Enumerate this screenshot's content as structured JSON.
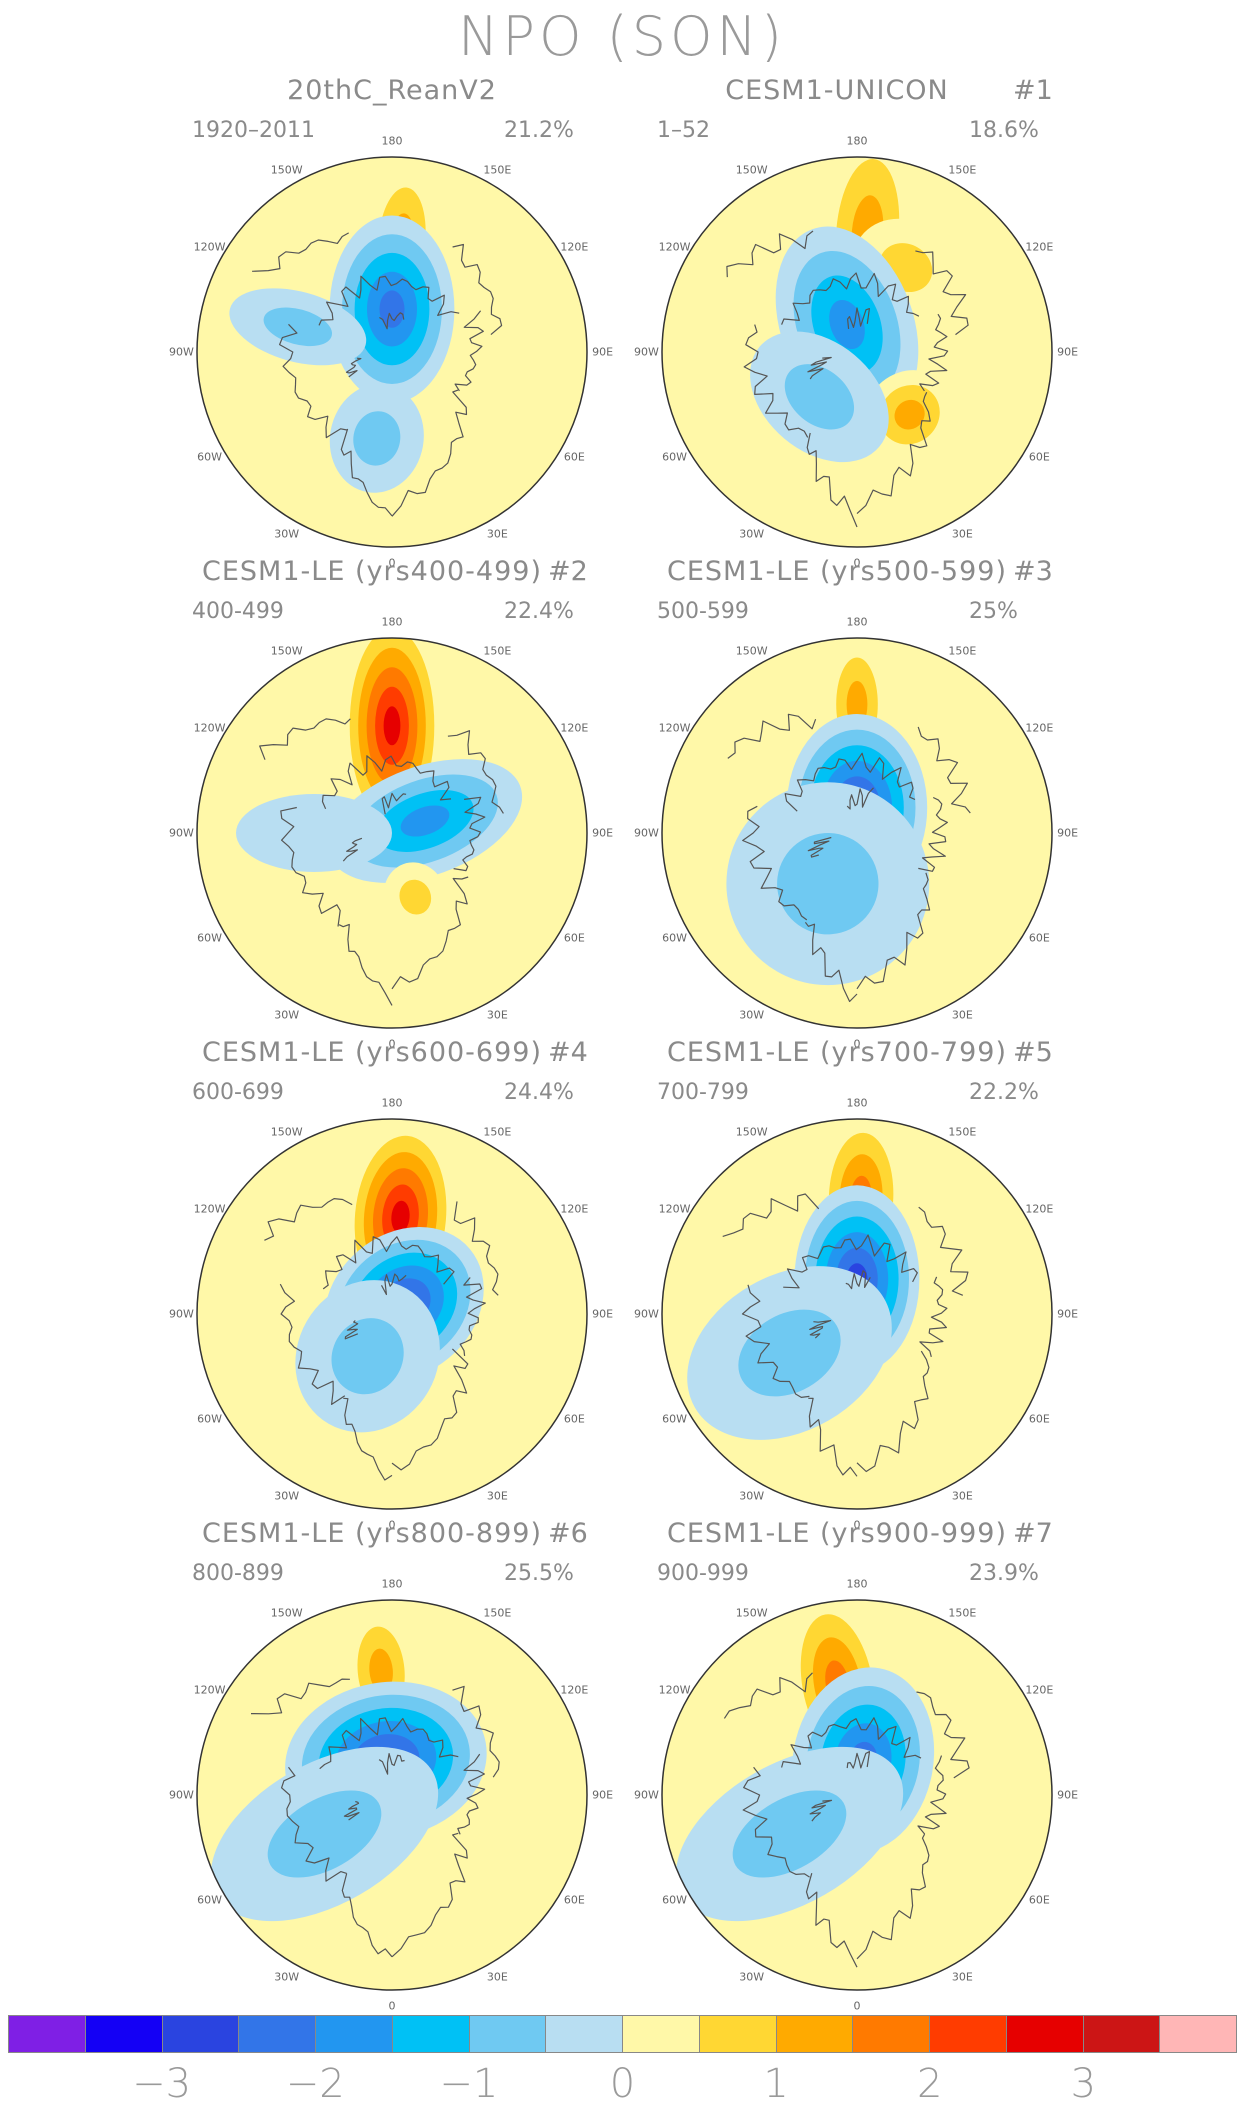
{
  "title": "NPO (SON)",
  "colors": {
    "levels": [
      "#7f1fe5",
      "#1400f5",
      "#2a44e0",
      "#3275e8",
      "#2296f0",
      "#00c1f5",
      "#6fc9f2",
      "#b8def2",
      "#fff8a8",
      "#ffd733",
      "#ffaa00",
      "#ff7a00",
      "#ff3c00",
      "#e60000",
      "#cc1515",
      "#ffb6b6"
    ],
    "coast": "#555555",
    "rim": "#333333"
  },
  "colorbar": {
    "ticks": [
      "−3",
      "−2",
      "−1",
      "0",
      "1",
      "2",
      "3"
    ]
  },
  "lon_labels": [
    "180",
    "150E",
    "120E",
    "90E",
    "60E",
    "30E",
    "0",
    "30W",
    "60W",
    "90W",
    "120W",
    "150W"
  ],
  "panels": [
    {
      "title": "20thC_ReanV2",
      "number": "",
      "years": "1920–2011",
      "variance": "21.2%",
      "anomalies": [
        {
          "lon": 175,
          "r": 0.58,
          "ex": 0.2,
          "ey": 0.09,
          "val": 1.2
        },
        {
          "lon": 180,
          "r": 0.22,
          "ex": 0.24,
          "ey": 0.16,
          "val": -2.1
        },
        {
          "lon": 350,
          "r": 0.45,
          "ex": 0.14,
          "ey": 0.12,
          "val": -0.6
        },
        {
          "lon": 255,
          "r": 0.5,
          "ex": 0.18,
          "ey": 0.09,
          "val": -0.6
        }
      ]
    },
    {
      "title": "CESM1-UNICON",
      "number": "#1",
      "years": "1–52",
      "variance": "18.6%",
      "anomalies": [
        {
          "lon": 175,
          "r": 0.62,
          "ex": 0.28,
          "ey": 0.12,
          "val": 1.5
        },
        {
          "lon": 150,
          "r": 0.5,
          "ex": 0.12,
          "ey": 0.14,
          "val": 0.9
        },
        {
          "lon": 200,
          "r": 0.15,
          "ex": 0.26,
          "ey": 0.17,
          "val": -2.0
        },
        {
          "lon": 40,
          "r": 0.42,
          "ex": 0.11,
          "ey": 0.12,
          "val": 1.1
        },
        {
          "lon": 320,
          "r": 0.3,
          "ex": 0.14,
          "ey": 0.2,
          "val": -0.8
        }
      ]
    },
    {
      "title": "CESM1-LE (yrs400-499)",
      "number": "#2",
      "years": "400-499",
      "variance": "22.4%",
      "anomalies": [
        {
          "lon": 180,
          "r": 0.55,
          "ex": 0.3,
          "ey": 0.13,
          "val": 2.8
        },
        {
          "lon": 110,
          "r": 0.18,
          "ex": 0.26,
          "ey": 0.14,
          "val": -2.0
        },
        {
          "lon": 20,
          "r": 0.35,
          "ex": 0.09,
          "ey": 0.08,
          "val": 1.0
        },
        {
          "lon": 270,
          "r": 0.4,
          "ex": 0.2,
          "ey": 0.1,
          "val": -0.5
        }
      ]
    },
    {
      "title": "CESM1-LE (yrs500-599)",
      "number": "#3",
      "years": "500-599",
      "variance": "25%",
      "anomalies": [
        {
          "lon": 180,
          "r": 0.66,
          "ex": 0.18,
          "ey": 0.08,
          "val": 1.1
        },
        {
          "lon": 180,
          "r": 0.13,
          "ex": 0.24,
          "ey": 0.18,
          "val": -3.0
        },
        {
          "lon": 330,
          "r": 0.3,
          "ex": 0.26,
          "ey": 0.26,
          "val": -0.6
        }
      ]
    },
    {
      "title": "CESM1-LE (yrs600-699)",
      "number": "#4",
      "years": "600-699",
      "variance": "24.4%",
      "anomalies": [
        {
          "lon": 175,
          "r": 0.5,
          "ex": 0.25,
          "ey": 0.14,
          "val": 2.6
        },
        {
          "lon": 130,
          "r": 0.08,
          "ex": 0.22,
          "ey": 0.18,
          "val": -3.0
        },
        {
          "lon": 330,
          "r": 0.25,
          "ex": 0.2,
          "ey": 0.18,
          "val": -0.6
        }
      ]
    },
    {
      "title": "CESM1-LE (yrs700-799)",
      "number": "#5",
      "years": "700-799",
      "variance": "22.2%",
      "anomalies": [
        {
          "lon": 178,
          "r": 0.6,
          "ex": 0.22,
          "ey": 0.11,
          "val": 1.8
        },
        {
          "lon": 180,
          "r": 0.18,
          "ex": 0.24,
          "ey": 0.16,
          "val": -2.6
        },
        {
          "lon": 300,
          "r": 0.4,
          "ex": 0.28,
          "ey": 0.2,
          "val": -0.6
        }
      ]
    },
    {
      "title": "CESM1-LE (yrs800-899)",
      "number": "#6",
      "years": "800-899",
      "variance": "25.5%",
      "anomalies": [
        {
          "lon": 185,
          "r": 0.64,
          "ex": 0.17,
          "ey": 0.09,
          "val": 1.5
        },
        {
          "lon": 190,
          "r": 0.18,
          "ex": 0.2,
          "ey": 0.26,
          "val": -2.9
        },
        {
          "lon": 300,
          "r": 0.4,
          "ex": 0.32,
          "ey": 0.18,
          "val": -0.6
        }
      ]
    },
    {
      "title": "CESM1-LE (yrs900-999)",
      "number": "#7",
      "years": "900-999",
      "variance": "23.9%",
      "anomalies": [
        {
          "lon": 190,
          "r": 0.58,
          "ex": 0.24,
          "ey": 0.12,
          "val": 2.0
        },
        {
          "lon": 170,
          "r": 0.18,
          "ex": 0.24,
          "ey": 0.18,
          "val": -2.2
        },
        {
          "lon": 300,
          "r": 0.4,
          "ex": 0.32,
          "ey": 0.18,
          "val": -0.6
        }
      ]
    }
  ]
}
